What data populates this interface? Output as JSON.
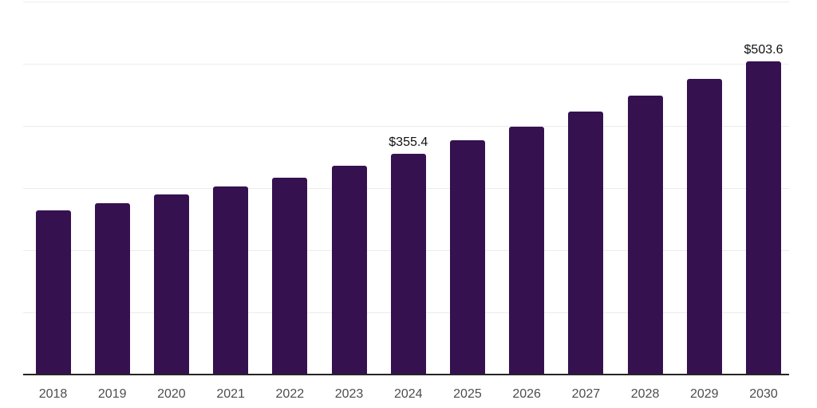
{
  "chart_data": {
    "type": "bar",
    "title": "",
    "xlabel": "",
    "ylabel": "",
    "categories": [
      "2018",
      "2019",
      "2020",
      "2021",
      "2022",
      "2023",
      "2024",
      "2025",
      "2026",
      "2027",
      "2028",
      "2029",
      "2030"
    ],
    "values": [
      264.4,
      275.9,
      289.9,
      302.7,
      316.7,
      335.6,
      355.4,
      376.6,
      399.2,
      423.1,
      448.4,
      475.2,
      503.6
    ],
    "data_labels": {
      "2024": "$355.4",
      "2030": "$503.6"
    },
    "ylim": [
      0,
      600
    ],
    "grid_step": 100,
    "grid": true,
    "legend": false,
    "colors": {
      "bar": "#351150",
      "gridline": "#ececec",
      "axis_line": "#262626",
      "x_tick_label": "#4d4d4d",
      "data_label": "#111111",
      "background": "#ffffff"
    }
  }
}
